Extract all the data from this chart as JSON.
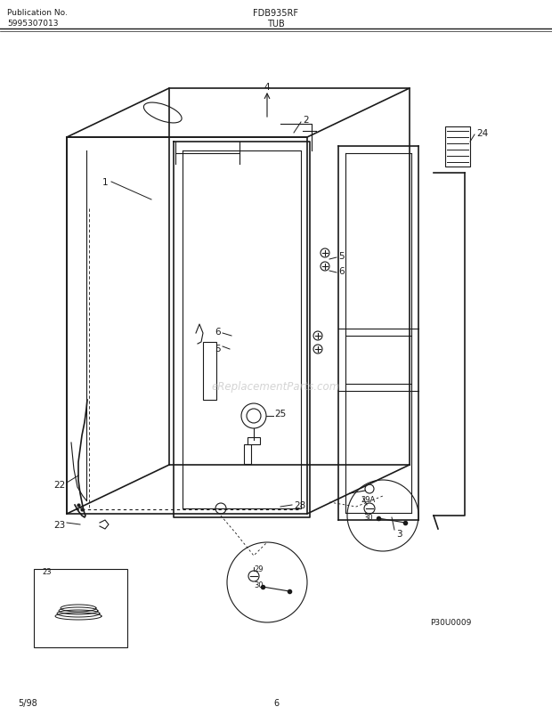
{
  "title_left_line1": "Publication No.",
  "title_left_line2": "5995307013",
  "title_center_line1": "FDB935RF",
  "title_center_line2": "TUB",
  "bottom_left": "5/98",
  "bottom_center": "6",
  "watermark": "eReplacementParts.com",
  "part_number_stamp": "P30U0009",
  "bg_color": "#ffffff",
  "diagram_color": "#1a1a1a",
  "fig_width": 6.2,
  "fig_height": 8.04,
  "dpi": 100
}
